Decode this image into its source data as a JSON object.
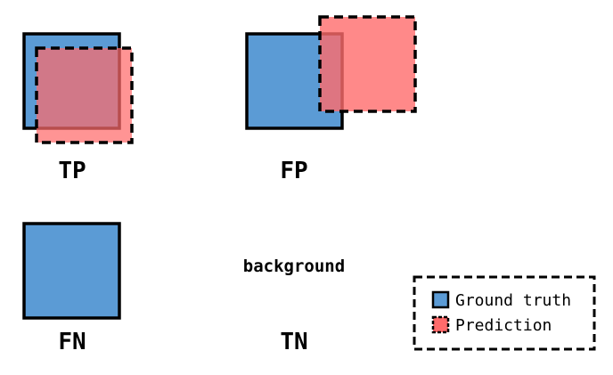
{
  "colors": {
    "ground_truth_fill": "#5b9bd5",
    "prediction_fill": "#ff6b6b",
    "stroke": "#000000"
  },
  "cases": {
    "tp": "TP",
    "fp": "FP",
    "fn": "FN",
    "tn": "TN"
  },
  "background_label": "background",
  "legend": {
    "ground_truth": "Ground truth",
    "prediction": "Prediction"
  }
}
